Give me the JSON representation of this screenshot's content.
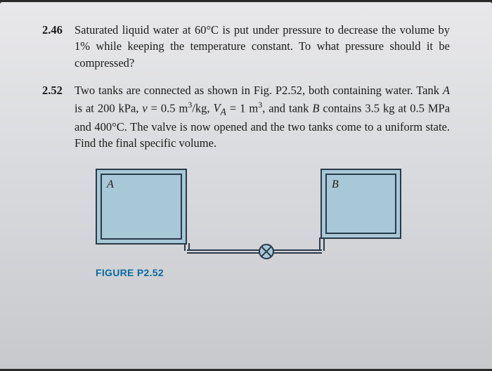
{
  "problems": [
    {
      "number": "2.46",
      "text": "Saturated liquid water at 60°C is put under pressure to decrease the volume by 1% while keeping the temperature constant. To what pressure should it be compressed?"
    },
    {
      "number": "2.52",
      "text_html": "Two tanks are connected as shown in Fig. P2.52, both containing water. Tank <i>A</i> is at 200 kPa, <i>v</i> = 0.5 m<sup>3</sup>/kg, <i>V<sub>A</sub></i> = 1 m<sup>3</sup>, and tank <i>B</i> contains 3.5 kg at 0.5 MPa and 400°C. The valve is now opened and the two tanks come to a uniform state. Find the final specific volume."
    }
  ],
  "figure": {
    "tankA_label": "A",
    "tankB_label": "B",
    "caption": "FIGURE P2.52",
    "tank_fill_color": "#a8c8d8",
    "tank_border_color": "#2a3a4a",
    "caption_color": "#0a6aa0",
    "page_bg_top": "#e8e8eb",
    "page_bg_bottom": "#c8c9cc"
  }
}
